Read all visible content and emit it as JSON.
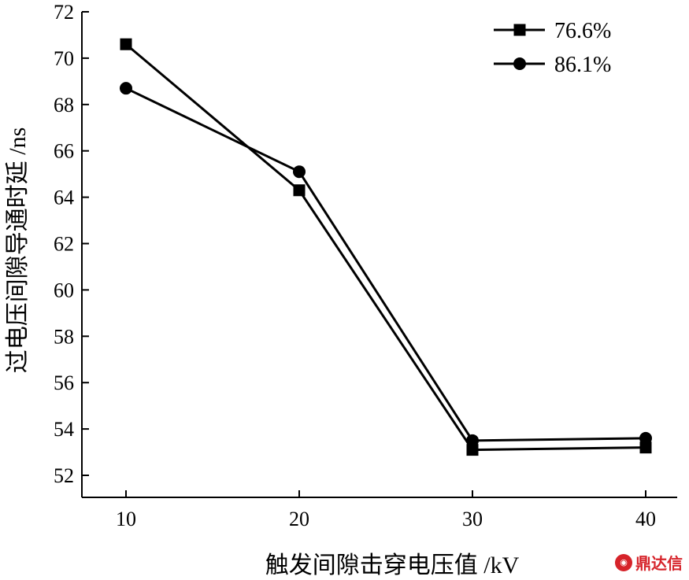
{
  "chart_data": {
    "type": "line",
    "title": "",
    "xlabel": "触发间隙击穿电压值 /kV",
    "ylabel": "过电压间隙导通时延 /ns",
    "x": [
      10,
      20,
      30,
      40
    ],
    "xticks": [
      "10",
      "20",
      "30",
      "40"
    ],
    "yticks": [
      "52",
      "54",
      "56",
      "58",
      "60",
      "62",
      "64",
      "66",
      "68",
      "70",
      "72"
    ],
    "ylim": [
      51,
      72
    ],
    "xlim": [
      7.5,
      42
    ],
    "series": [
      {
        "name": "76.6%",
        "marker": "square",
        "values": [
          70.6,
          64.3,
          53.1,
          53.2
        ]
      },
      {
        "name": "86.1%",
        "marker": "circle",
        "values": [
          68.7,
          65.1,
          53.5,
          53.6
        ]
      }
    ],
    "legend_position": "top-right",
    "color": "#000000"
  },
  "watermark": {
    "text": "鼎达信",
    "icon": "logo-icon"
  }
}
